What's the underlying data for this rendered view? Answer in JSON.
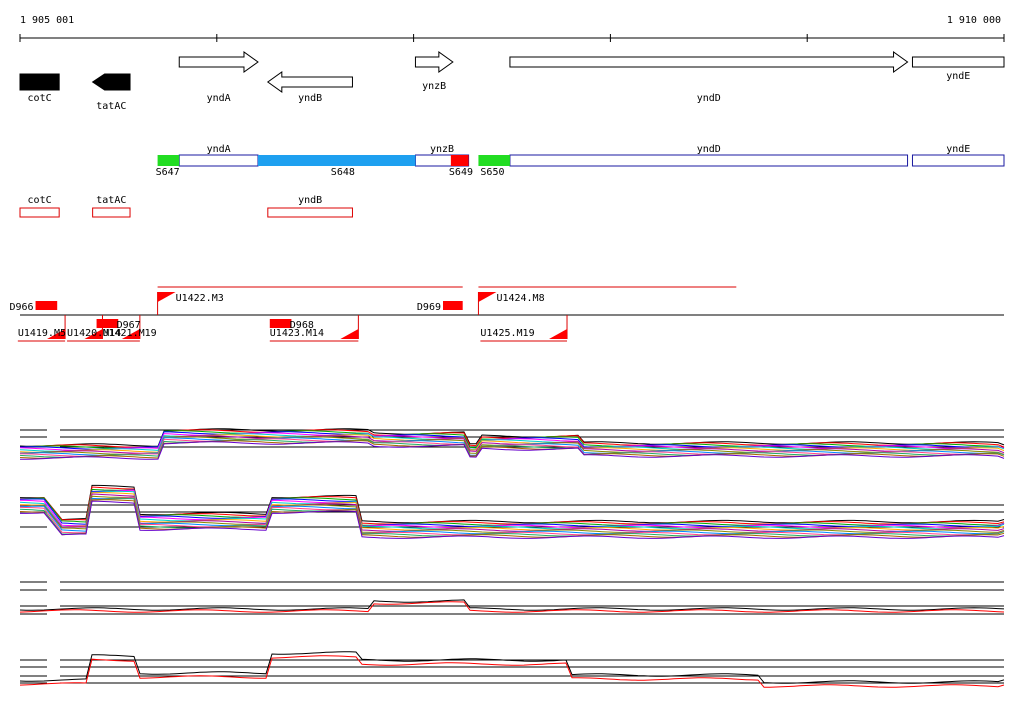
{
  "ruler": {
    "start_label": "1 905 001",
    "end_label": "1 910 000",
    "start": 1905001,
    "end": 1910000
  },
  "genes": [
    {
      "name": "cotC",
      "strand": "+",
      "style": "filled",
      "start": 1905001,
      "end": 1905200
    },
    {
      "name": "tatAC",
      "strand": "-",
      "style": "filled",
      "start": 1905370,
      "end": 1905560
    },
    {
      "name": "yndA",
      "strand": "+",
      "style": "open",
      "start": 1905810,
      "end": 1906210
    },
    {
      "name": "yndB",
      "strand": "-",
      "style": "open",
      "start": 1906260,
      "end": 1906690
    },
    {
      "name": "ynzB",
      "strand": "+",
      "style": "open",
      "start": 1907010,
      "end": 1907200
    },
    {
      "name": "yndD",
      "strand": "+",
      "style": "open",
      "start": 1907490,
      "end": 1909510
    },
    {
      "name": "yndE",
      "strand": "+",
      "style": "open",
      "start": 1909535,
      "end": 1910000
    }
  ],
  "segments": {
    "boxes": [
      {
        "label": "yndA",
        "start": 1905810,
        "end": 1906210
      },
      {
        "label": "ynzB",
        "start": 1907010,
        "end": 1907280
      },
      {
        "label": "yndD",
        "start": 1907490,
        "end": 1909510
      },
      {
        "label": "yndE",
        "start": 1909535,
        "end": 1910000
      }
    ],
    "fills": [
      {
        "start": 1905700,
        "end": 1905810,
        "color": "#22dd22"
      },
      {
        "start": 1906210,
        "end": 1907010,
        "color": "#1ea0f0"
      },
      {
        "start": 1907190,
        "end": 1907280,
        "color": "#ff0000"
      },
      {
        "start": 1907330,
        "end": 1907490,
        "color": "#22dd22"
      }
    ],
    "labels": [
      {
        "text": "S647",
        "pos": 1905690
      },
      {
        "text": "S648",
        "pos": 1906580
      },
      {
        "text": "S649",
        "pos": 1907180
      },
      {
        "text": "S650",
        "pos": 1907340
      }
    ]
  },
  "antisense": [
    {
      "label": "cotC",
      "start": 1905001,
      "end": 1905200
    },
    {
      "label": "tatAC",
      "start": 1905370,
      "end": 1905560
    },
    {
      "label": "yndB",
      "start": 1906260,
      "end": 1906690
    }
  ],
  "transcripts": {
    "plus": [
      {
        "label": "U1422.M3",
        "start": 1905700,
        "end": 1907250
      },
      {
        "label": "U1424.M8",
        "start": 1907330,
        "end": 1908640
      }
    ],
    "minus": [
      {
        "label": "U1419.M5",
        "start": 1904990,
        "end": 1905230
      },
      {
        "label": "U1420.M14",
        "start": 1905240,
        "end": 1905420
      },
      {
        "label": "U1421.M19",
        "start": 1905420,
        "end": 1905610
      },
      {
        "label": "U1423.M14",
        "start": 1906270,
        "end": 1906720
      },
      {
        "label": "U1425.M19",
        "start": 1907340,
        "end": 1907780
      }
    ],
    "markers": [
      {
        "label": "D966",
        "start": 1905080,
        "end": 1905190,
        "above": true
      },
      {
        "label": "D967",
        "start": 1905390,
        "end": 1905500,
        "above": false
      },
      {
        "label": "D968",
        "start": 1906270,
        "end": 1906380,
        "above": false
      },
      {
        "label": "D969",
        "start": 1907150,
        "end": 1907250,
        "above": true
      }
    ]
  }
}
